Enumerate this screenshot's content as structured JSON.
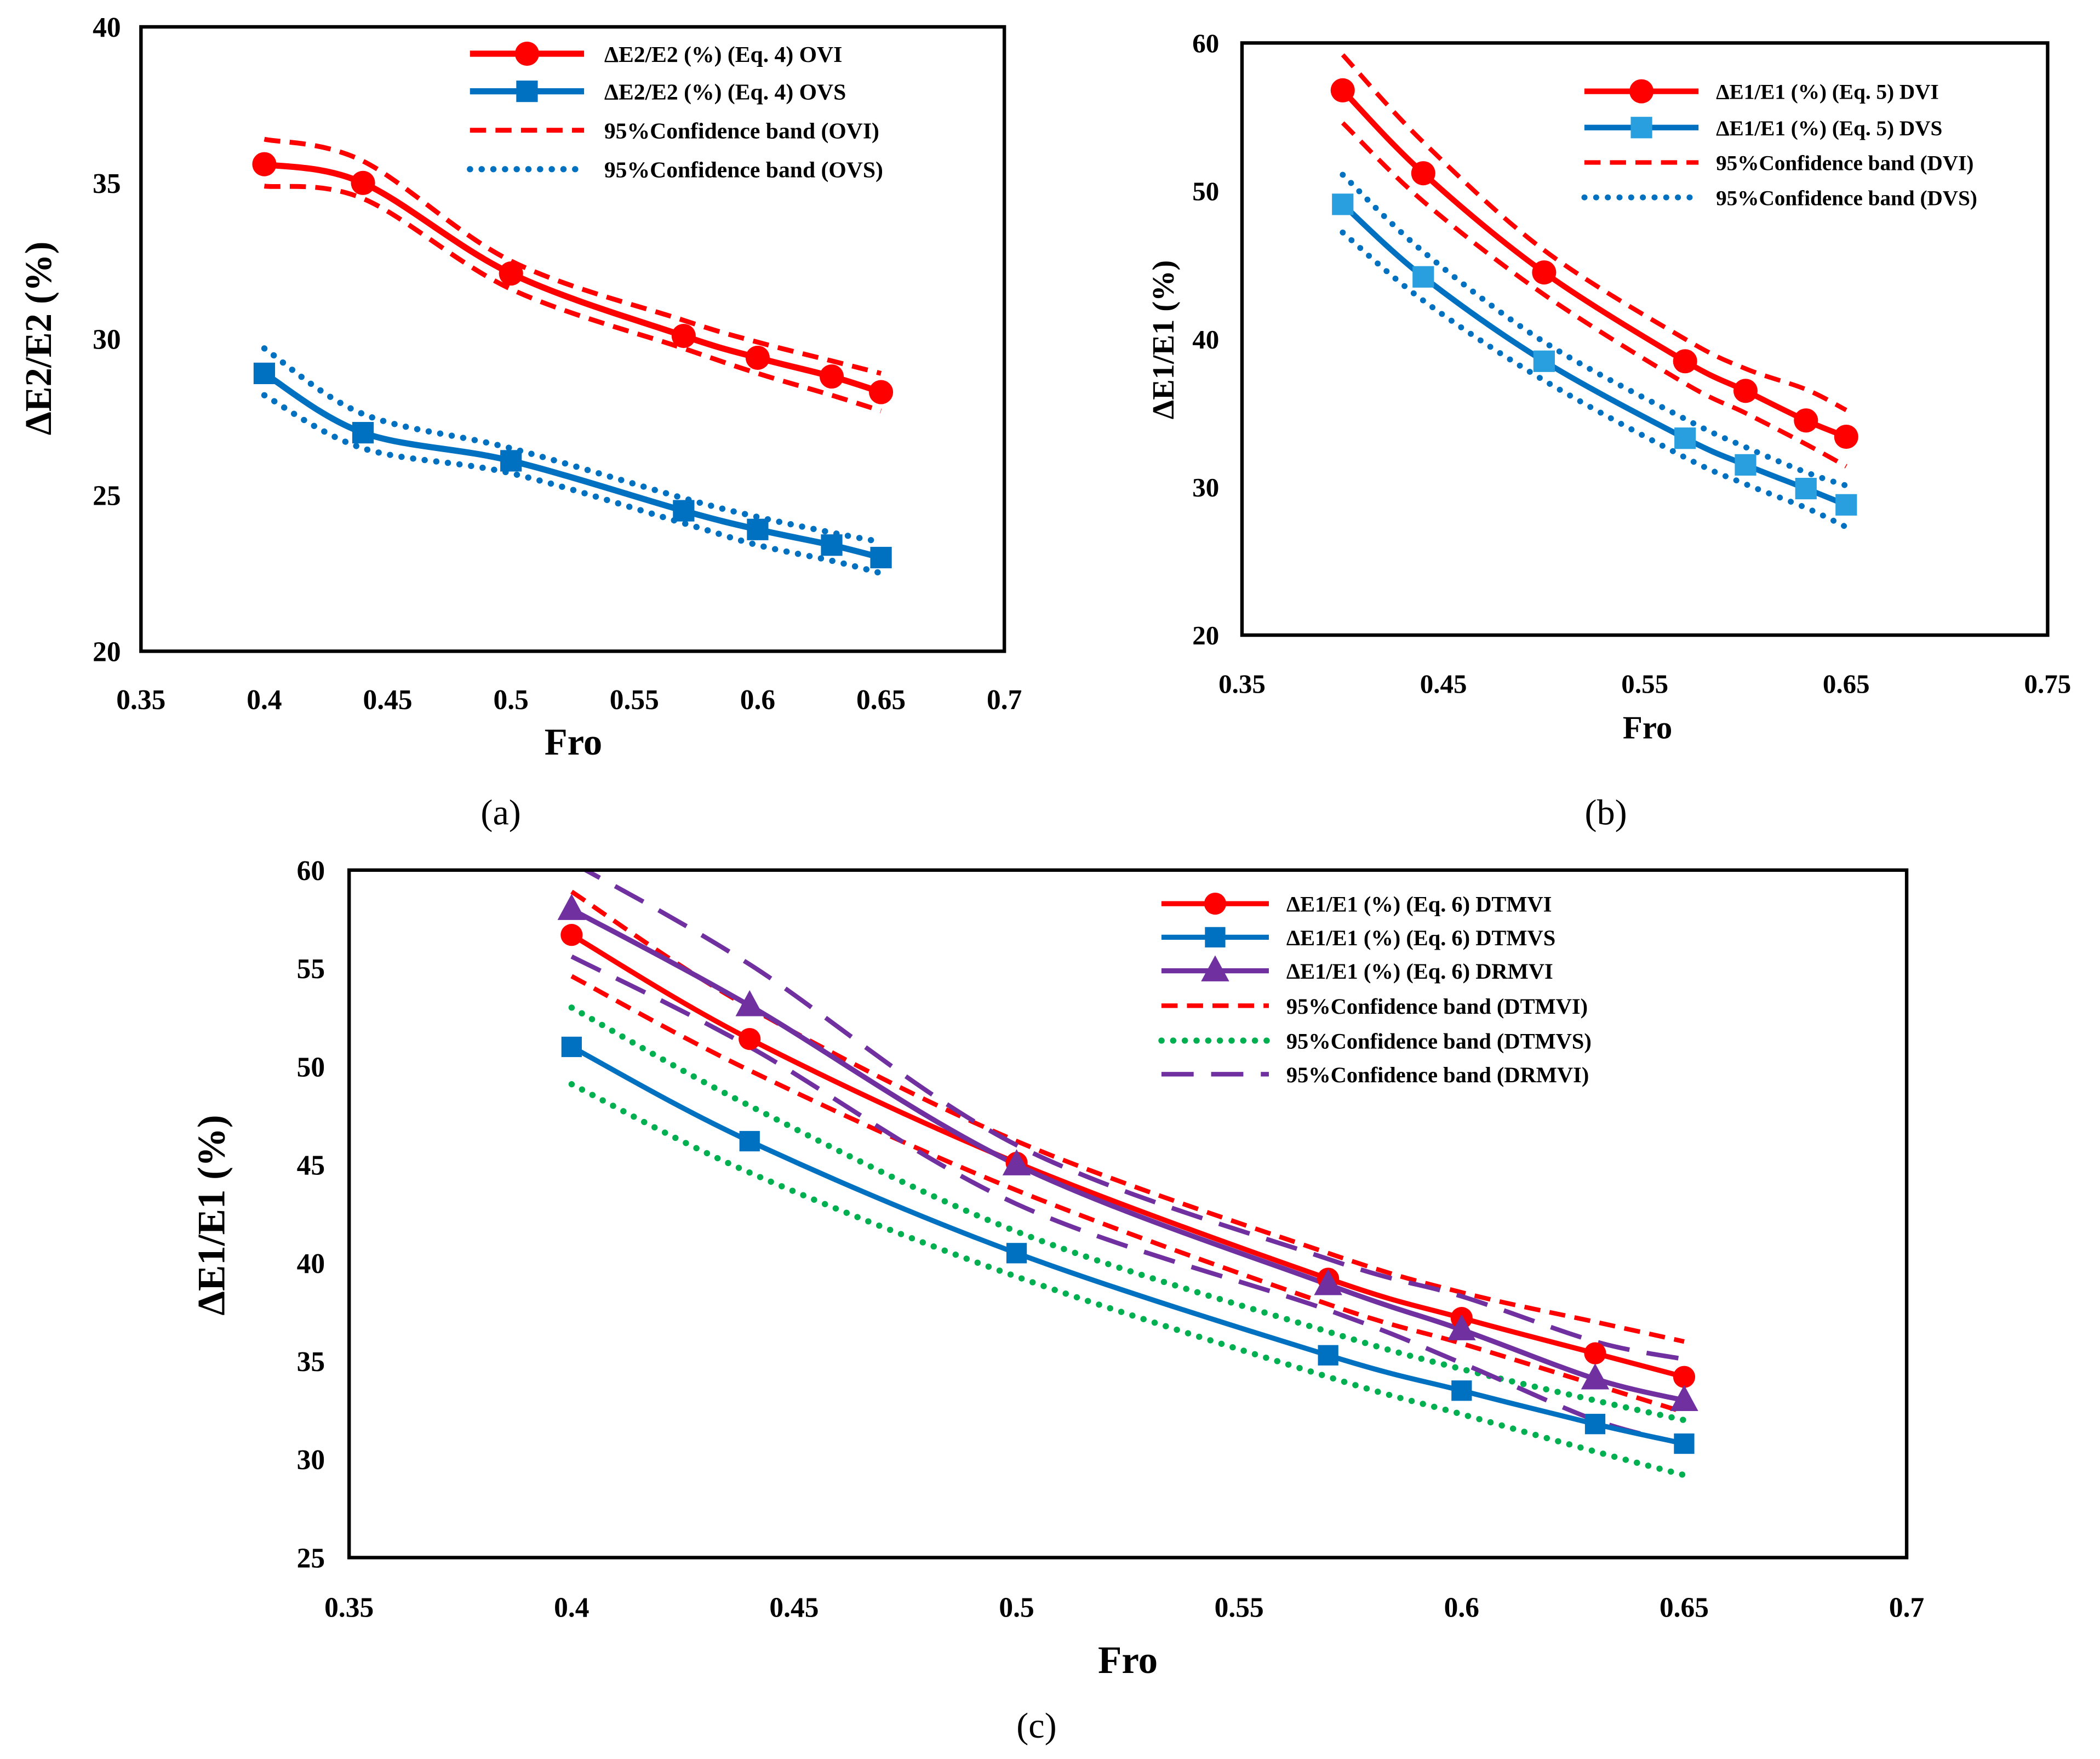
{
  "chart_data": [
    {
      "type": "line",
      "caption": "(a)",
      "xlabel": "Fro",
      "ylabel": "ΔE2/E2 (%)",
      "xlim": [
        0.35,
        0.7
      ],
      "ylim": [
        20,
        40
      ],
      "xticks": [
        0.35,
        0.4,
        0.45,
        0.5,
        0.55,
        0.6,
        0.65,
        0.7
      ],
      "xtick_labels": [
        "0.35",
        "0.4",
        "0.45",
        "0.5",
        "0.55",
        "0.6",
        "0.65",
        "0.7"
      ],
      "yticks": [
        20,
        25,
        30,
        35,
        40
      ],
      "ytick_labels": [
        "20",
        "25",
        "30",
        "35",
        "40"
      ],
      "grid": false,
      "legend": "top-right",
      "series": [
        {
          "name": "ΔE2/E2 (%) (Eq. 4) OVI",
          "color": "#FF0000",
          "line": "solid",
          "marker": "circle",
          "x": [
            0.4,
            0.44,
            0.5,
            0.57,
            0.6,
            0.63,
            0.65
          ],
          "values": [
            35.6,
            35.0,
            32.1,
            30.1,
            29.4,
            28.8,
            28.3
          ]
        },
        {
          "name": "ΔE2/E2 (%) (Eq. 4) OVS",
          "color": "#0070C0",
          "line": "solid",
          "marker": "square",
          "x": [
            0.4,
            0.44,
            0.5,
            0.57,
            0.6,
            0.63,
            0.65
          ],
          "values": [
            28.9,
            27.0,
            26.1,
            24.5,
            23.9,
            23.4,
            23.0
          ]
        },
        {
          "name": "95%Confidence band (OVI)",
          "color": "#FF0000",
          "line": "dashed",
          "marker": "none",
          "x": [
            0.4,
            0.44,
            0.5,
            0.57,
            0.6,
            0.63,
            0.65
          ],
          "upper": [
            36.4,
            35.7,
            32.5,
            30.6,
            29.9,
            29.3,
            28.9
          ],
          "lower": [
            34.9,
            34.5,
            31.6,
            29.7,
            28.9,
            28.2,
            27.7
          ]
        },
        {
          "name": "95%Confidence band (OVS)",
          "color": "#0070C0",
          "line": "dotted",
          "marker": "none",
          "x": [
            0.4,
            0.44,
            0.5,
            0.57,
            0.6,
            0.63,
            0.65
          ],
          "upper": [
            29.7,
            27.6,
            26.5,
            24.9,
            24.3,
            23.8,
            23.5
          ],
          "lower": [
            28.2,
            26.5,
            25.7,
            24.1,
            23.4,
            22.9,
            22.5
          ]
        }
      ]
    },
    {
      "type": "line",
      "caption": "(b)",
      "xlabel": "Fro",
      "ylabel": "ΔE1/E1 (%)",
      "xlim": [
        0.35,
        0.75
      ],
      "ylim": [
        20,
        60
      ],
      "xticks": [
        0.35,
        0.45,
        0.55,
        0.65,
        0.75
      ],
      "xtick_labels": [
        "0.35",
        "0.45",
        "0.55",
        "0.65",
        "0.75"
      ],
      "yticks": [
        20,
        30,
        40,
        50,
        60
      ],
      "ytick_labels": [
        "20",
        "30",
        "40",
        "50",
        "60"
      ],
      "grid": false,
      "legend": "top-right",
      "series": [
        {
          "name": "ΔE1/E1 (%) (Eq. 5) DVI",
          "color": "#FF0000",
          "line": "solid",
          "marker": "circle",
          "x": [
            0.4,
            0.44,
            0.5,
            0.57,
            0.6,
            0.63,
            0.65
          ],
          "values": [
            56.8,
            51.2,
            44.5,
            38.5,
            36.5,
            34.5,
            33.4
          ]
        },
        {
          "name": "ΔE1/E1 (%) (Eq. 5) DVS",
          "color": "#0070C0",
          "marker_color": "#2A9FDF",
          "line": "solid",
          "marker": "square",
          "x": [
            0.4,
            0.44,
            0.5,
            0.57,
            0.6,
            0.63,
            0.65
          ],
          "values": [
            49.1,
            44.2,
            38.5,
            33.3,
            31.5,
            29.9,
            28.8
          ]
        },
        {
          "name": "95%Confidence band (DVI)",
          "color": "#FF0000",
          "line": "dashed",
          "marker": "none",
          "x": [
            0.4,
            0.44,
            0.5,
            0.57,
            0.6,
            0.63,
            0.65
          ],
          "upper": [
            59.2,
            53.3,
            46.0,
            40.0,
            38.0,
            36.6,
            35.2
          ],
          "lower": [
            54.6,
            49.3,
            43.0,
            37.0,
            35.0,
            32.9,
            31.4
          ]
        },
        {
          "name": "95%Confidence band (DVS)",
          "color": "#0070C0",
          "line": "dotted",
          "marker": "none",
          "x": [
            0.4,
            0.44,
            0.5,
            0.57,
            0.6,
            0.63,
            0.65
          ],
          "upper": [
            51.1,
            45.9,
            39.8,
            34.6,
            32.7,
            31.0,
            30.1
          ],
          "lower": [
            47.2,
            42.6,
            37.2,
            32.0,
            30.2,
            28.6,
            27.3
          ]
        }
      ]
    },
    {
      "type": "line",
      "caption": "(c)",
      "xlabel": "Fro",
      "ylabel": "ΔE1/E1 (%)",
      "xlim": [
        0.35,
        0.7
      ],
      "ylim": [
        25,
        60
      ],
      "xticks": [
        0.35,
        0.4,
        0.45,
        0.5,
        0.55,
        0.6,
        0.65,
        0.7
      ],
      "xtick_labels": [
        "0.35",
        "0.4",
        "0.45",
        "0.5",
        "0.55",
        "0.6",
        "0.65",
        "0.7"
      ],
      "yticks": [
        25,
        30,
        35,
        40,
        45,
        50,
        55,
        60
      ],
      "ytick_labels": [
        "25",
        "30",
        "35",
        "40",
        "45",
        "50",
        "55",
        "60"
      ],
      "grid": false,
      "legend": "top-right",
      "series": [
        {
          "name": "ΔE1/E1 (%) (Eq. 6) DTMVI",
          "color": "#FF0000",
          "line": "solid",
          "marker": "circle",
          "x": [
            0.4,
            0.44,
            0.5,
            0.57,
            0.6,
            0.63,
            0.65
          ],
          "values": [
            56.7,
            51.4,
            45.1,
            39.2,
            37.2,
            35.4,
            34.2
          ]
        },
        {
          "name": "ΔE1/E1 (%) (Eq. 6) DTMVS",
          "color": "#0070C0",
          "line": "solid",
          "marker": "square",
          "x": [
            0.4,
            0.44,
            0.5,
            0.57,
            0.6,
            0.63,
            0.65
          ],
          "values": [
            51.0,
            46.2,
            40.5,
            35.3,
            33.5,
            31.8,
            30.8
          ]
        },
        {
          "name": "ΔE1/E1 (%) (Eq. 6) DRMVI",
          "color": "#7030A0",
          "line": "solid",
          "marker": "triangle",
          "x": [
            0.4,
            0.44,
            0.5,
            0.57,
            0.6,
            0.63,
            0.65
          ],
          "values": [
            58.0,
            53.1,
            45.0,
            38.9,
            36.6,
            34.1,
            33.0
          ]
        },
        {
          "name": "95%Confidence band (DTMVI)",
          "color": "#FF0000",
          "line": "dashed",
          "marker": "none",
          "x": [
            0.4,
            0.44,
            0.5,
            0.57,
            0.6,
            0.63,
            0.65
          ],
          "upper": [
            58.9,
            53.0,
            46.2,
            40.5,
            38.5,
            37.0,
            36.0
          ],
          "lower": [
            54.6,
            49.8,
            43.7,
            37.9,
            35.9,
            33.8,
            32.4
          ]
        },
        {
          "name": "95%Confidence band (DTMVS)",
          "color": "#00B050",
          "line": "dotted",
          "marker": "none",
          "x": [
            0.4,
            0.44,
            0.5,
            0.57,
            0.6,
            0.63,
            0.65
          ],
          "upper": [
            53.0,
            48.0,
            41.6,
            36.5,
            34.6,
            33.0,
            32.0
          ],
          "lower": [
            49.1,
            44.6,
            39.3,
            34.2,
            32.3,
            30.4,
            29.2
          ]
        },
        {
          "name": "95%Confidence band (DRMVI)",
          "color": "#7030A0",
          "line": "longdash",
          "marker": "none",
          "x": [
            0.4,
            0.44,
            0.5,
            0.57,
            0.6,
            0.63,
            0.65
          ],
          "upper": [
            60.4,
            55.2,
            46.0,
            40.2,
            38.3,
            36.0,
            35.1
          ],
          "lower": [
            55.6,
            51.0,
            43.0,
            37.6,
            34.9,
            32.0,
            30.8
          ]
        }
      ]
    }
  ]
}
